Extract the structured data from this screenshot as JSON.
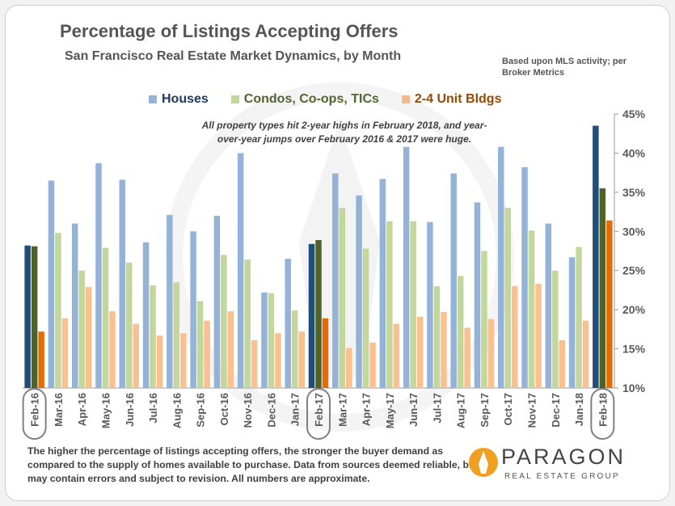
{
  "chart_data": {
    "type": "bar",
    "title": "Percentage of Listings Accepting Offers",
    "subtitle": "San Francisco Real Estate Market Dynamics, by Month",
    "source_note": "Based upon MLS activity; per Broker Metrics",
    "annotation": "All property types hit 2-year highs in February 2018, and year-over-year jumps over February 2016 & 2017 were huge.",
    "ylim": [
      10,
      45
    ],
    "yticks": [
      "10%",
      "15%",
      "20%",
      "25%",
      "30%",
      "35%",
      "40%",
      "45%"
    ],
    "yaxis_position": "right",
    "legend_position": "top",
    "categories": [
      "Feb-16",
      "Mar-16",
      "Apr-16",
      "May-16",
      "Jun-16",
      "Jul-16",
      "Aug-16",
      "Sep-16",
      "Oct-16",
      "Nov-16",
      "Dec-16",
      "Jan-17",
      "Feb-17",
      "Mar-17",
      "Apr-17",
      "May-17",
      "Jun-17",
      "Jul-17",
      "Aug-17",
      "Sep-17",
      "Oct-17",
      "Nov-17",
      "Dec-17",
      "Jan-18",
      "Feb-18"
    ],
    "highlighted_categories": [
      "Feb-16",
      "Feb-17",
      "Feb-18"
    ],
    "series": [
      {
        "name": "Houses",
        "color": "#95b3d7",
        "highlight_color": "#1f4e79",
        "values": [
          28.2,
          36.5,
          31.0,
          38.7,
          36.6,
          28.6,
          32.1,
          30.0,
          32.0,
          40.0,
          22.2,
          26.5,
          28.4,
          37.4,
          34.6,
          36.7,
          40.8,
          31.2,
          37.4,
          33.7,
          40.8,
          38.2,
          31.0,
          26.7,
          43.5
        ]
      },
      {
        "name": "Condos, Co-ops, TICs",
        "color": "#c3d69b",
        "highlight_color": "#4f6228",
        "values": [
          28.1,
          29.8,
          25.0,
          27.9,
          26.0,
          23.1,
          23.5,
          21.1,
          27.0,
          26.4,
          22.1,
          19.9,
          28.9,
          33.0,
          27.8,
          31.3,
          31.3,
          23.0,
          24.3,
          27.5,
          33.0,
          30.1,
          25.0,
          28.0,
          35.5
        ]
      },
      {
        "name": "2-4 Unit Bldgs",
        "color": "#fac090",
        "highlight_color": "#e36c09",
        "values": [
          17.2,
          18.9,
          22.9,
          19.8,
          18.2,
          16.7,
          17.0,
          18.6,
          19.8,
          16.1,
          17.0,
          17.2,
          18.9,
          15.1,
          15.8,
          18.2,
          19.1,
          19.7,
          17.7,
          18.8,
          23.0,
          23.3,
          16.1,
          18.6,
          31.4
        ]
      }
    ]
  },
  "footnote": "The higher the percentage of listings accepting offers, the stronger the buyer demand as compared to the supply of homes available to purchase. Data from sources deemed reliable, but may contain errors and subject to revision. All numbers are approximate.",
  "logo": {
    "name": "PARAGON",
    "tagline": "REAL ESTATE GROUP"
  },
  "colors": {
    "title": "#555555",
    "legend_houses_text": "#1f3864",
    "legend_condos_text": "#4f6228",
    "legend_units_text": "#974806",
    "logo_orange": "#f0a020"
  }
}
